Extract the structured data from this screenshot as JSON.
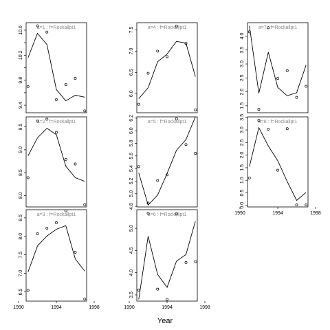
{
  "figure": {
    "xlabel": "Year",
    "line_color": "#000000",
    "point_color": "#000000",
    "strip_text_color": "#888888",
    "background": "#ffffff"
  },
  "chart_data": [
    {
      "type": "line",
      "id": "a1",
      "strip_label": "a=1 : f=Rockallpt1",
      "x_range": [
        1990,
        1998
      ],
      "xlim": [
        1990.8,
        1997.2
      ],
      "ylim": [
        9.28,
        10.72
      ],
      "y_ticks": [
        9.4,
        9.6,
        9.8,
        10.0,
        10.2,
        10.4,
        10.6
      ],
      "y_tick_labels": [
        "9.4",
        "",
        "9.8",
        "",
        "10.2",
        "",
        "10.6"
      ],
      "x_ticks": [
        1990,
        1994,
        1998
      ],
      "x_tick_labels": [
        "1990",
        "1994",
        "1998"
      ],
      "show_x_ticks": false,
      "points": {
        "x": [
          1991,
          1992,
          1993,
          1994,
          1995,
          1996,
          1997
        ],
        "y": [
          9.7,
          10.67,
          10.57,
          9.49,
          9.73,
          9.83,
          9.31
        ]
      },
      "line": {
        "x": [
          1991,
          1992,
          1993,
          1994,
          1995,
          1996,
          1997
        ],
        "y": [
          10.16,
          10.55,
          10.37,
          9.65,
          9.47,
          9.56,
          9.53
        ]
      }
    },
    {
      "type": "line",
      "id": "a2",
      "strip_label": "a=2 : f=Rockallpt1",
      "x_range": [
        1990,
        1998
      ],
      "xlim": [
        1990.8,
        1997.2
      ],
      "ylim": [
        7.75,
        9.72
      ],
      "y_ticks": [
        8.0,
        8.5,
        9.0,
        9.5
      ],
      "y_tick_labels": [
        "8.0",
        "8.5",
        "9.0",
        "9.5"
      ],
      "x_ticks": [
        1990,
        1994,
        1998
      ],
      "x_tick_labels": [
        "1990",
        "1994",
        "1998"
      ],
      "show_x_ticks": false,
      "points": {
        "x": [
          1991,
          1992,
          1993,
          1994,
          1995,
          1996,
          1997
        ],
        "y": [
          8.39,
          9.63,
          9.67,
          9.38,
          8.79,
          8.69,
          7.8
        ]
      },
      "line": {
        "x": [
          1991,
          1992,
          1993,
          1994,
          1995,
          1996,
          1997
        ],
        "y": [
          8.87,
          9.26,
          9.47,
          9.33,
          8.64,
          8.39,
          8.31
        ]
      }
    },
    {
      "type": "line",
      "id": "a3",
      "strip_label": "a=3 : f=Rockallpt1",
      "x_range": [
        1990,
        1998
      ],
      "xlim": [
        1990.8,
        1997.2
      ],
      "ylim": [
        6.25,
        8.72
      ],
      "y_ticks": [
        6.5,
        7.0,
        7.5,
        8.0,
        8.5
      ],
      "y_tick_labels": [
        "6.5",
        "7.0",
        "7.5",
        "8.0",
        "8.5"
      ],
      "x_ticks": [
        1990,
        1994,
        1998
      ],
      "x_tick_labels": [
        "1990",
        "1994",
        "1998"
      ],
      "show_x_ticks": true,
      "points": {
        "x": [
          1991,
          1992,
          1993,
          1994,
          1995,
          1996,
          1997
        ],
        "y": [
          6.54,
          8.07,
          8.22,
          8.37,
          8.69,
          7.57,
          6.31
        ]
      },
      "line": {
        "x": [
          1991,
          1992,
          1993,
          1994,
          1995,
          1996,
          1997
        ],
        "y": [
          7.04,
          7.74,
          8.01,
          8.19,
          8.29,
          7.39,
          7.06
        ]
      }
    },
    {
      "type": "line",
      "id": "a4",
      "strip_label": "a=4 : f=Rockallpt1",
      "x_range": [
        1990,
        1998
      ],
      "xlim": [
        1990.8,
        1997.2
      ],
      "ylim": [
        5.55,
        7.67
      ],
      "y_ticks": [
        6.0,
        6.5,
        7.0,
        7.5
      ],
      "y_tick_labels": [
        "6.0",
        "6.5",
        "7.0",
        "7.5"
      ],
      "x_ticks": [
        1990,
        1994,
        1998
      ],
      "x_tick_labels": [
        "1990",
        "1994",
        "1998"
      ],
      "show_x_ticks": false,
      "points": {
        "x": [
          1991,
          1992,
          1993,
          1994,
          1995,
          1996,
          1997
        ],
        "y": [
          5.75,
          6.48,
          7.0,
          6.87,
          7.59,
          7.18,
          5.62
        ]
      },
      "line": {
        "x": [
          1991,
          1992,
          1993,
          1994,
          1995,
          1996,
          1997
        ],
        "y": [
          5.88,
          6.14,
          6.75,
          6.93,
          7.23,
          7.19,
          6.4
        ]
      }
    },
    {
      "type": "line",
      "id": "a5",
      "strip_label": "a=5 : f=Rockallpt1",
      "x_range": [
        1990,
        1998
      ],
      "xlim": [
        1990.8,
        1997.2
      ],
      "ylim": [
        4.79,
        6.22
      ],
      "y_ticks": [
        4.8,
        5.0,
        5.2,
        5.4,
        5.6,
        5.8,
        6.0,
        6.2
      ],
      "y_tick_labels": [
        "4.8",
        "5.0",
        "5.2",
        "5.4",
        "5.6",
        "5.8",
        "6.0",
        "6.2"
      ],
      "x_ticks": [
        1990,
        1994,
        1998
      ],
      "x_tick_labels": [
        "1990",
        "1994",
        "1998"
      ],
      "show_x_ticks": false,
      "points": {
        "x": [
          1991,
          1992,
          1993,
          1994,
          1995,
          1996,
          1997
        ],
        "y": [
          5.43,
          4.85,
          5.21,
          5.3,
          6.19,
          5.78,
          5.64
        ]
      },
      "line": {
        "x": [
          1991,
          1992,
          1993,
          1994,
          1995,
          1996,
          1997
        ],
        "y": [
          5.33,
          4.82,
          4.98,
          5.32,
          5.69,
          5.86,
          6.22
        ]
      }
    },
    {
      "type": "line",
      "id": "a6",
      "strip_label": "a=6 : f=Rockallpt1",
      "x_range": [
        1990,
        1998
      ],
      "xlim": [
        1990.8,
        1997.2
      ],
      "ylim": [
        3.36,
        5.42
      ],
      "y_ticks": [
        3.5,
        4.0,
        4.5,
        5.0
      ],
      "y_tick_labels": [
        "3.5",
        "4.0",
        "4.5",
        "5.0"
      ],
      "x_ticks": [
        1990,
        1994,
        1998
      ],
      "x_tick_labels": [
        "1990",
        "1994",
        "1998"
      ],
      "show_x_ticks": true,
      "points": {
        "x": [
          1991,
          1992,
          1993,
          1994,
          1995,
          1996,
          1997
        ],
        "y": [
          3.61,
          5.34,
          3.63,
          3.4,
          5.33,
          4.23,
          4.25
        ]
      },
      "line": {
        "x": [
          1991,
          1992,
          1993,
          1994,
          1995,
          1996,
          1997
        ],
        "y": [
          3.4,
          4.82,
          3.96,
          3.67,
          4.26,
          4.41,
          5.16
        ]
      }
    },
    {
      "type": "line",
      "id": "a7",
      "strip_label": "a=7 : f=Rockallpt1",
      "x_range": [
        1990,
        1998
      ],
      "xlim": [
        1990.8,
        1997.2
      ],
      "ylim": [
        1.25,
        4.48
      ],
      "y_ticks": [
        1.5,
        2.0,
        2.5,
        3.0,
        3.5,
        4.0
      ],
      "y_tick_labels": [
        "1.5",
        "2.0",
        "2.5",
        "3.0",
        "3.5",
        "4.0"
      ],
      "x_ticks": [
        1990,
        1994,
        1998
      ],
      "x_tick_labels": [
        "1990",
        "1994",
        "1998"
      ],
      "show_x_ticks": false,
      "points": {
        "x": [
          1991,
          1992,
          1993,
          1994,
          1995,
          1996,
          1997
        ],
        "y": [
          4.15,
          1.37,
          4.3,
          2.48,
          2.76,
          1.8,
          2.2
        ]
      },
      "line": {
        "x": [
          1991,
          1992,
          1993,
          1994,
          1995,
          1996,
          1997
        ],
        "y": [
          4.37,
          1.95,
          3.42,
          2.16,
          1.86,
          1.97,
          2.96
        ]
      }
    },
    {
      "type": "line",
      "id": "a8",
      "strip_label": "a=8 : f=Rockallpt1",
      "x_range": [
        1990,
        1998
      ],
      "xlim": [
        1990.8,
        1997.2
      ],
      "ylim": [
        -0.06,
        3.52
      ],
      "y_ticks": [
        0.0,
        0.5,
        1.0,
        1.5,
        2.0,
        2.5,
        3.0,
        3.5
      ],
      "y_tick_labels": [
        "0.0",
        "0.5",
        "1.0",
        "1.5",
        "2.0",
        "2.5",
        "3.0",
        "3.5"
      ],
      "x_ticks": [
        1990,
        1994,
        1998
      ],
      "x_tick_labels": [
        "1990",
        "1994",
        "1998"
      ],
      "show_x_ticks": true,
      "points": {
        "x": [
          1991,
          1992,
          1993,
          1994,
          1995,
          1996,
          1997
        ],
        "y": [
          1.09,
          3.38,
          3.03,
          1.4,
          3.05,
          0.02,
          0.02
        ]
      },
      "line": {
        "x": [
          1991,
          1992,
          1993,
          1994,
          1995,
          1996,
          1997
        ],
        "y": [
          1.55,
          3.09,
          2.36,
          1.78,
          0.95,
          0.2,
          0.52
        ]
      }
    }
  ]
}
